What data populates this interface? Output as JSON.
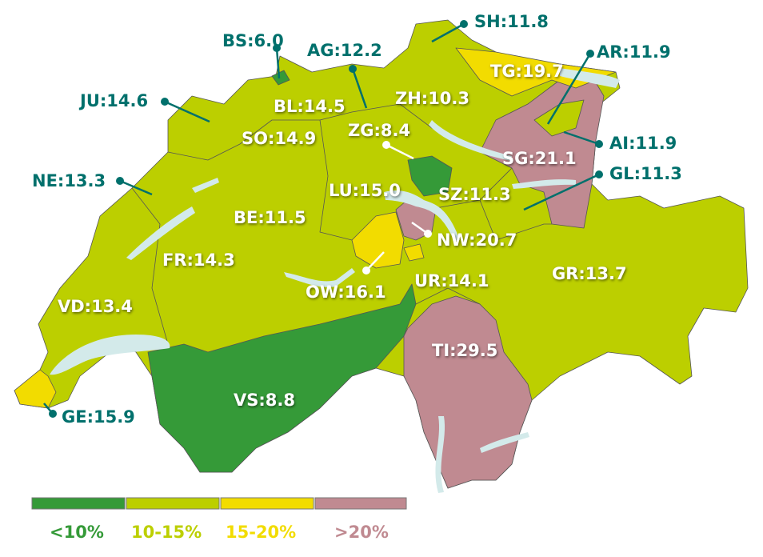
{
  "colors": {
    "lt10": "#359a38",
    "10to15": "#bccf00",
    "15to20": "#f2dc00",
    "gt20": "#c08a91",
    "lake": "#d3eaea",
    "label_teal": "#00706c"
  },
  "cantons": [
    {
      "code": "BS",
      "label": "BS:6.0",
      "value": 6.0
    },
    {
      "code": "AG",
      "label": "AG:12.2",
      "value": 12.2
    },
    {
      "code": "SH",
      "label": "SH:11.8",
      "value": 11.8
    },
    {
      "code": "AR",
      "label": "AR:11.9",
      "value": 11.9
    },
    {
      "code": "TG",
      "label": "TG:19.7",
      "value": 19.7
    },
    {
      "code": "JU",
      "label": "JU:14.6",
      "value": 14.6
    },
    {
      "code": "BL",
      "label": "BL:14.5",
      "value": 14.5
    },
    {
      "code": "ZH",
      "label": "ZH:10.3",
      "value": 10.3
    },
    {
      "code": "SO",
      "label": "SO:14.9",
      "value": 14.9
    },
    {
      "code": "ZG",
      "label": "ZG:8.4",
      "value": 8.4
    },
    {
      "code": "AI",
      "label": "AI:11.9",
      "value": 11.9
    },
    {
      "code": "SG",
      "label": "SG:21.1",
      "value": 21.1
    },
    {
      "code": "NE",
      "label": "NE:13.3",
      "value": 13.3
    },
    {
      "code": "GL",
      "label": "GL:11.3",
      "value": 11.3
    },
    {
      "code": "LU",
      "label": "LU:15.0",
      "value": 15.0
    },
    {
      "code": "SZ",
      "label": "SZ:11.3",
      "value": 11.3
    },
    {
      "code": "BE",
      "label": "BE:11.5",
      "value": 11.5
    },
    {
      "code": "NW",
      "label": "NW:20.7",
      "value": 20.7
    },
    {
      "code": "FR",
      "label": "FR:14.3",
      "value": 14.3
    },
    {
      "code": "GR",
      "label": "GR:13.7",
      "value": 13.7
    },
    {
      "code": "OW",
      "label": "OW:16.1",
      "value": 16.1
    },
    {
      "code": "UR",
      "label": "UR:14.1",
      "value": 14.1
    },
    {
      "code": "VD",
      "label": "VD:13.4",
      "value": 13.4
    },
    {
      "code": "TI",
      "label": "TI:29.5",
      "value": 29.5
    },
    {
      "code": "VS",
      "label": "VS:8.8",
      "value": 8.8
    },
    {
      "code": "GE",
      "label": "GE:15.9",
      "value": 15.9
    }
  ],
  "legend": [
    {
      "label": "<10%",
      "color": "#359a38"
    },
    {
      "label": "10-15%",
      "color": "#bccf00"
    },
    {
      "label": "15-20%",
      "color": "#f2dc00"
    },
    {
      "label": ">20%",
      "color": "#c08a91"
    }
  ]
}
